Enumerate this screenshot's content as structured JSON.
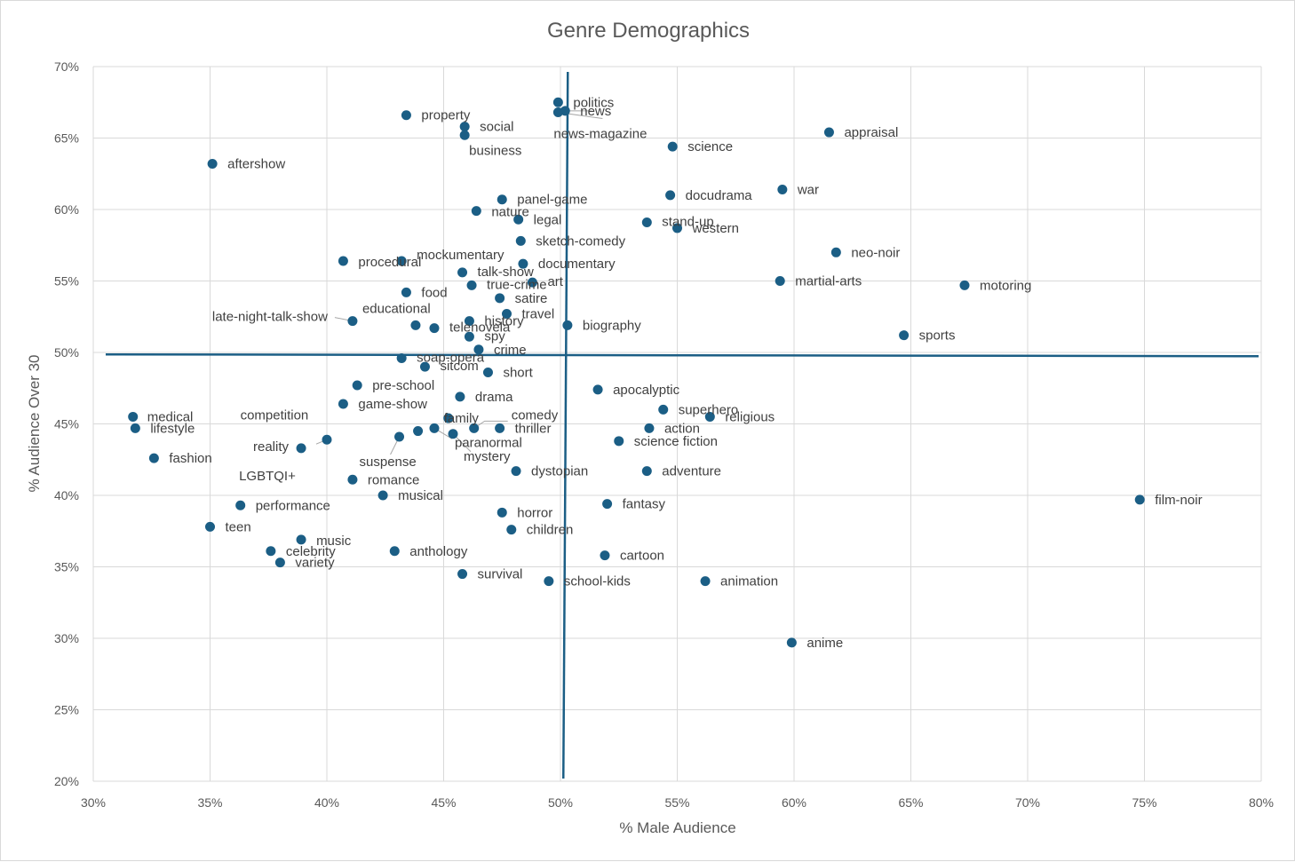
{
  "chart_data": {
    "type": "scatter",
    "title": "Genre Demographics",
    "xlabel": "% Male Audience",
    "ylabel": "% Audience Over 30",
    "xlim": [
      30,
      80
    ],
    "ylim": [
      20,
      70
    ],
    "x_ticks": [
      30,
      35,
      40,
      45,
      50,
      55,
      60,
      65,
      70,
      75,
      80
    ],
    "y_ticks": [
      20,
      25,
      30,
      35,
      40,
      45,
      50,
      55,
      60,
      65,
      70
    ],
    "x_tick_labels": [
      "30%",
      "35%",
      "40%",
      "45%",
      "50%",
      "55%",
      "60%",
      "65%",
      "70%",
      "75%",
      "80%"
    ],
    "y_tick_labels": [
      "20%",
      "25%",
      "30%",
      "35%",
      "40%",
      "45%",
      "50%",
      "55%",
      "60%",
      "65%",
      "70%"
    ],
    "grid": true,
    "reference_lines": {
      "x": [
        50.2
      ],
      "y": [
        49.8
      ]
    },
    "points": [
      {
        "label": "politics",
        "x": 49.9,
        "y": 67.5
      },
      {
        "label": "news",
        "x": 50.2,
        "y": 66.9
      },
      {
        "label": "news-magazine",
        "x": 49.9,
        "y": 66.8
      },
      {
        "label": "property",
        "x": 43.4,
        "y": 66.6
      },
      {
        "label": "social",
        "x": 45.9,
        "y": 65.8
      },
      {
        "label": "business",
        "x": 45.9,
        "y": 65.2
      },
      {
        "label": "appraisal",
        "x": 61.5,
        "y": 65.4
      },
      {
        "label": "science",
        "x": 54.8,
        "y": 64.4
      },
      {
        "label": "aftershow",
        "x": 35.1,
        "y": 63.2
      },
      {
        "label": "war",
        "x": 59.5,
        "y": 61.4
      },
      {
        "label": "docudrama",
        "x": 54.7,
        "y": 61.0
      },
      {
        "label": "panel-game",
        "x": 47.5,
        "y": 60.7
      },
      {
        "label": "nature",
        "x": 46.4,
        "y": 59.9
      },
      {
        "label": "legal",
        "x": 48.2,
        "y": 59.3
      },
      {
        "label": "stand-up",
        "x": 53.7,
        "y": 59.1
      },
      {
        "label": "western",
        "x": 55.0,
        "y": 58.7
      },
      {
        "label": "sketch-comedy",
        "x": 48.3,
        "y": 57.8
      },
      {
        "label": "neo-noir",
        "x": 61.8,
        "y": 57.0
      },
      {
        "label": "procedural",
        "x": 40.7,
        "y": 56.4
      },
      {
        "label": "mockumentary",
        "x": 43.2,
        "y": 56.4
      },
      {
        "label": "documentary",
        "x": 48.4,
        "y": 56.2
      },
      {
        "label": "talk-show",
        "x": 45.8,
        "y": 55.6
      },
      {
        "label": "martial-arts",
        "x": 59.4,
        "y": 55.0
      },
      {
        "label": "art",
        "x": 48.8,
        "y": 54.9
      },
      {
        "label": "true-crime",
        "x": 46.2,
        "y": 54.7
      },
      {
        "label": "motoring",
        "x": 67.3,
        "y": 54.7
      },
      {
        "label": "food",
        "x": 43.4,
        "y": 54.2
      },
      {
        "label": "satire",
        "x": 47.4,
        "y": 53.8
      },
      {
        "label": "travel",
        "x": 47.7,
        "y": 52.7
      },
      {
        "label": "history",
        "x": 46.1,
        "y": 52.2
      },
      {
        "label": "late-night-talk-show",
        "x": 41.1,
        "y": 52.2
      },
      {
        "label": "educational",
        "x": 43.8,
        "y": 51.9
      },
      {
        "label": "telenovela",
        "x": 44.6,
        "y": 51.7
      },
      {
        "label": "biography",
        "x": 50.3,
        "y": 51.9
      },
      {
        "label": "spy",
        "x": 46.1,
        "y": 51.1
      },
      {
        "label": "sports",
        "x": 64.7,
        "y": 51.2
      },
      {
        "label": "crime",
        "x": 46.5,
        "y": 50.2
      },
      {
        "label": "soap-opera",
        "x": 43.2,
        "y": 49.6
      },
      {
        "label": "sitcom",
        "x": 44.2,
        "y": 49.0
      },
      {
        "label": "short",
        "x": 46.9,
        "y": 48.6
      },
      {
        "label": "pre-school",
        "x": 41.3,
        "y": 47.7
      },
      {
        "label": "apocalyptic",
        "x": 51.6,
        "y": 47.4
      },
      {
        "label": "drama",
        "x": 45.7,
        "y": 46.9
      },
      {
        "label": "game-show",
        "x": 40.7,
        "y": 46.4
      },
      {
        "label": "superhero",
        "x": 54.4,
        "y": 46.0
      },
      {
        "label": "comedy",
        "x": 46.3,
        "y": 44.7
      },
      {
        "label": "medical",
        "x": 31.7,
        "y": 45.5
      },
      {
        "label": "religious",
        "x": 56.4,
        "y": 45.5
      },
      {
        "label": "family",
        "x": 45.2,
        "y": 45.4
      },
      {
        "label": "lifestyle",
        "x": 31.8,
        "y": 44.7
      },
      {
        "label": "competition",
        "x": 43.9,
        "y": 44.5
      },
      {
        "label": "action",
        "x": 53.8,
        "y": 44.7
      },
      {
        "label": "thriller",
        "x": 47.4,
        "y": 44.7
      },
      {
        "label": "paranormal",
        "x": 44.6,
        "y": 44.7
      },
      {
        "label": "mystery",
        "x": 45.4,
        "y": 44.3
      },
      {
        "label": "suspense",
        "x": 43.1,
        "y": 44.1
      },
      {
        "label": "reality",
        "x": 40.0,
        "y": 43.9
      },
      {
        "label": "science fiction",
        "x": 52.5,
        "y": 43.8
      },
      {
        "label": "LGBTQI+",
        "x": 38.9,
        "y": 43.3
      },
      {
        "label": "fashion",
        "x": 32.6,
        "y": 42.6
      },
      {
        "label": "dystopian",
        "x": 48.1,
        "y": 41.7
      },
      {
        "label": "adventure",
        "x": 53.7,
        "y": 41.7
      },
      {
        "label": "romance",
        "x": 41.1,
        "y": 41.1
      },
      {
        "label": "musical",
        "x": 42.4,
        "y": 40.0
      },
      {
        "label": "film-noir",
        "x": 74.8,
        "y": 39.7
      },
      {
        "label": "fantasy",
        "x": 52.0,
        "y": 39.4
      },
      {
        "label": "performance",
        "x": 36.3,
        "y": 39.3
      },
      {
        "label": "horror",
        "x": 47.5,
        "y": 38.8
      },
      {
        "label": "teen",
        "x": 35.0,
        "y": 37.8
      },
      {
        "label": "children",
        "x": 47.9,
        "y": 37.6
      },
      {
        "label": "music",
        "x": 38.9,
        "y": 36.9
      },
      {
        "label": "celebrity",
        "x": 37.6,
        "y": 36.1
      },
      {
        "label": "anthology",
        "x": 42.9,
        "y": 36.1
      },
      {
        "label": "cartoon",
        "x": 51.9,
        "y": 35.8
      },
      {
        "label": "variety",
        "x": 38.0,
        "y": 35.3
      },
      {
        "label": "survival",
        "x": 45.8,
        "y": 34.5
      },
      {
        "label": "school-kids",
        "x": 49.5,
        "y": 34.0
      },
      {
        "label": "animation",
        "x": 56.2,
        "y": 34.0
      },
      {
        "label": "anime",
        "x": 59.9,
        "y": 29.7
      }
    ]
  }
}
